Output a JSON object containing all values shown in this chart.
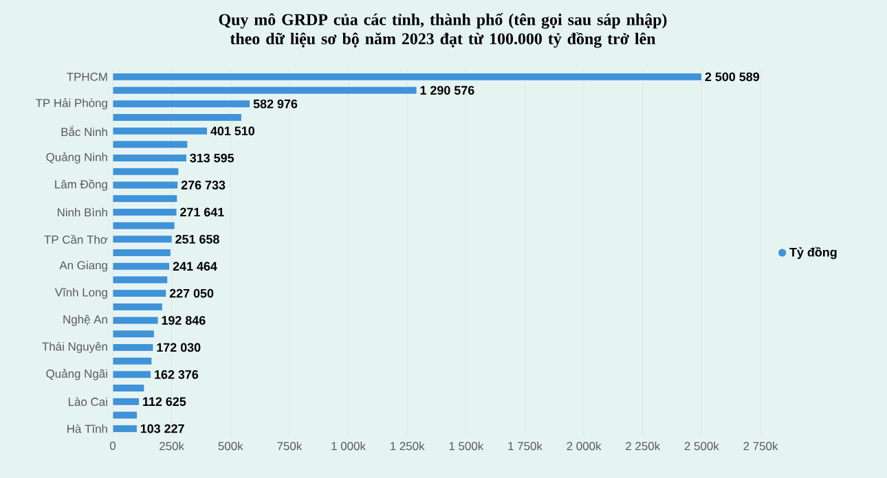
{
  "chart_data": {
    "type": "bar",
    "orientation": "horizontal",
    "title": "Quy mô GRDP của các tỉnh, thành phố (tên gọi sau sáp nhập) theo dữ liệu sơ bộ năm 2023 đạt từ 100.000 tỷ đồng trở lên",
    "categories": [
      "TPHCM",
      null,
      "TP Hải Phòng",
      null,
      "Bắc Ninh",
      null,
      "Quảng Ninh",
      null,
      "Lâm Đồng",
      null,
      "Ninh Bình",
      null,
      "TP Cần Thơ",
      null,
      "An Giang",
      null,
      "Vĩnh Long",
      null,
      "Nghệ An",
      null,
      "Thái Nguyên",
      null,
      "Quảng Ngãi",
      null,
      "Lào Cai",
      null,
      "Hà Tĩnh"
    ],
    "series": [
      {
        "name": "Tỷ đồng",
        "color": "#3f93d8",
        "values": [
          2500589,
          1290576,
          582976,
          547000,
          401510,
          318000,
          313595,
          280000,
          276733,
          274000,
          271641,
          263000,
          251658,
          246000,
          241464,
          233000,
          227050,
          211000,
          192846,
          176000,
          172030,
          166000,
          162376,
          134000,
          112625,
          104000,
          103227
        ],
        "value_labels": [
          "2 500 589",
          "1 290 576",
          "582 976",
          null,
          "401 510",
          null,
          "313 595",
          null,
          "276 733",
          null,
          "271 641",
          null,
          "251 658",
          null,
          "241 464",
          null,
          "227 050",
          null,
          "192 846",
          null,
          "172 030",
          null,
          "162 376",
          null,
          "112 625",
          null,
          "103 227"
        ]
      }
    ],
    "xlim": [
      0,
      2750000
    ],
    "xticks": [
      0,
      {
        "value": 250000,
        "label": "250k"
      },
      {
        "value": 500000,
        "label": "500k"
      },
      {
        "value": 750000,
        "label": "750k"
      },
      {
        "value": 1000000,
        "label": "1 000k"
      },
      {
        "value": 1250000,
        "label": "1 250k"
      },
      {
        "value": 1500000,
        "label": "1 500k"
      },
      {
        "value": 1750000,
        "label": "1 750k"
      },
      {
        "value": 2000000,
        "label": "2 000k"
      },
      {
        "value": 2250000,
        "label": "2 250k"
      },
      {
        "value": 2500000,
        "label": "2 500k"
      },
      {
        "value": 2750000,
        "label": "2 750k"
      }
    ],
    "grid": "x",
    "legend": "right"
  }
}
